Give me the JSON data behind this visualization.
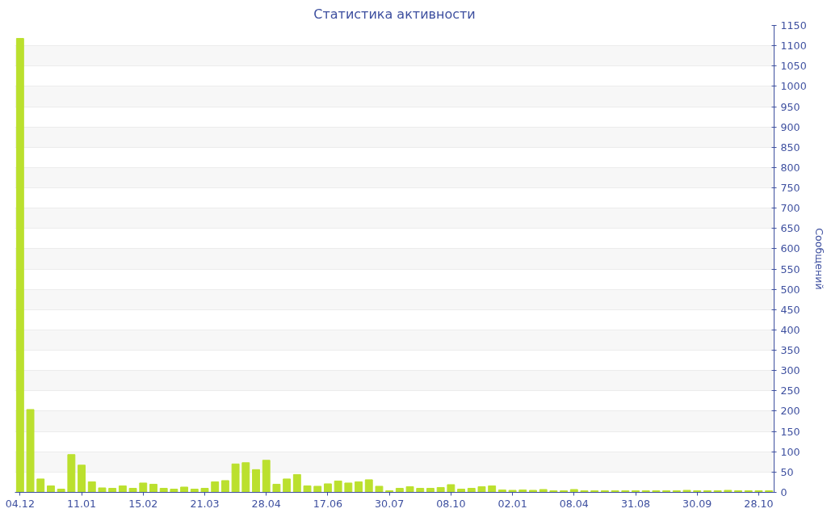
{
  "chart_data": {
    "type": "bar",
    "title": "Статистика активности",
    "ylabel": "Сообщений",
    "categories": [
      "04.12",
      null,
      null,
      null,
      null,
      null,
      "11.01",
      null,
      null,
      null,
      null,
      null,
      "15.02",
      null,
      null,
      null,
      null,
      null,
      "21.03",
      null,
      null,
      null,
      null,
      null,
      "28.04",
      null,
      null,
      null,
      null,
      null,
      "17.06",
      null,
      null,
      null,
      null,
      null,
      "30.07",
      null,
      null,
      null,
      null,
      null,
      "08.10",
      null,
      null,
      null,
      null,
      null,
      "02.01",
      null,
      null,
      null,
      null,
      null,
      "08.04",
      null,
      null,
      null,
      null,
      null,
      "31.08",
      null,
      null,
      null,
      null,
      null,
      "30.09",
      null,
      null,
      null,
      null,
      null,
      "28.10",
      null
    ],
    "values": [
      1118,
      204,
      33,
      16,
      8,
      93,
      67,
      26,
      11,
      10,
      16,
      10,
      23,
      20,
      10,
      8,
      13,
      8,
      10,
      26,
      29,
      70,
      73,
      56,
      79,
      20,
      33,
      44,
      16,
      15,
      21,
      28,
      23,
      26,
      31,
      15,
      4,
      10,
      14,
      10,
      10,
      12,
      19,
      8,
      10,
      14,
      16,
      6,
      5,
      6,
      5,
      7,
      4,
      4,
      7,
      4,
      4,
      4,
      4,
      4,
      4,
      4,
      4,
      4,
      4,
      5,
      4,
      4,
      4,
      5,
      4,
      4,
      4,
      4
    ],
    "color": "#bbe02e",
    "ylim": [
      0,
      1150
    ],
    "yticks": [
      0,
      50,
      100,
      150,
      200,
      250,
      300,
      350,
      400,
      450,
      500,
      550,
      600,
      650,
      700,
      750,
      800,
      850,
      900,
      950,
      1000,
      1050,
      1100,
      1150
    ],
    "grid": "y"
  }
}
